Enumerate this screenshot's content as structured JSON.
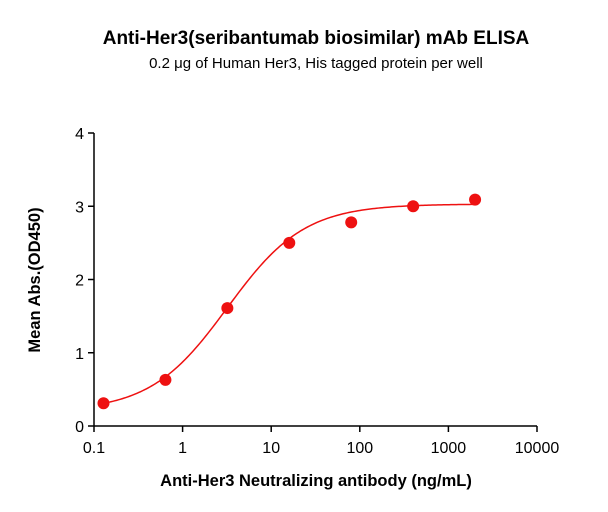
{
  "chart_data": {
    "type": "scatter",
    "title": "Anti-Her3(seribantumab biosimilar) mAb ELISA",
    "subtitle": "0.2 μg of Human Her3, His tagged protein per well",
    "xlabel": "Anti-Her3 Neutralizing antibody (ng/mL)",
    "ylabel": "Mean Abs.(OD450)",
    "xscale": "log",
    "xlim": [
      0.1,
      10000
    ],
    "ylim": [
      0,
      4
    ],
    "xticks": [
      "0.1",
      "1",
      "10",
      "100",
      "1000",
      "10000"
    ],
    "yticks": [
      "0",
      "1",
      "2",
      "3",
      "4"
    ],
    "grid": false,
    "color": "#ee1111",
    "x": [
      0.128,
      0.64,
      3.2,
      16,
      80,
      400,
      2000
    ],
    "y": [
      0.31,
      0.63,
      1.61,
      2.5,
      2.78,
      3.0,
      3.09
    ],
    "fit": {
      "model": "4PL",
      "bottom": 0.2,
      "top": 3.03,
      "ec50": 3.2,
      "hill": 1.0
    }
  }
}
